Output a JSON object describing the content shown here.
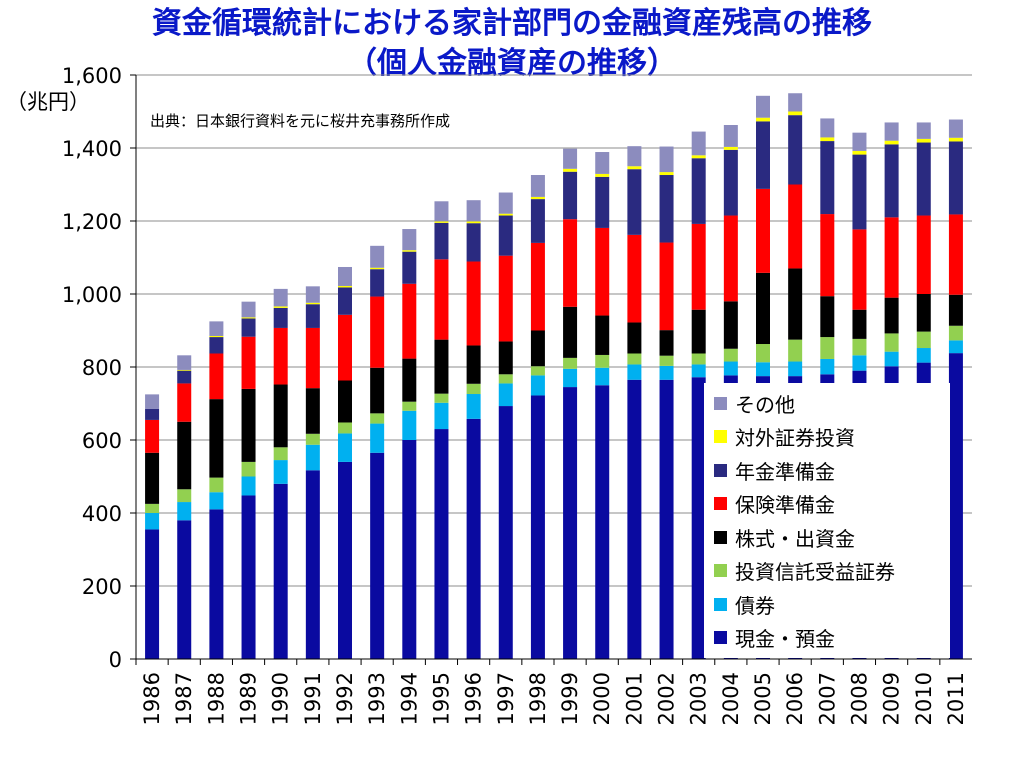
{
  "title": {
    "line1": "資金循環統計における家計部門の金融資産残高の推移",
    "line2": "（個人金融資産の推移）"
  },
  "unit_label": "（兆円）",
  "source_note": "出典：日本銀行資料を元に桜井充事務所作成",
  "chart_data": {
    "type": "bar",
    "stacked": true,
    "title": "資金循環統計における家計部門の金融資産残高の推移（個人金融資産の推移）",
    "ylabel": "（兆円）",
    "ylim": [
      0,
      1600
    ],
    "yticks": [
      0,
      200,
      400,
      600,
      800,
      1000,
      1200,
      1400,
      1600
    ],
    "ytick_labels": [
      "0",
      "200",
      "400",
      "600",
      "800",
      "1,000",
      "1,200",
      "1,400",
      "1,600"
    ],
    "grid": true,
    "legend_position": "bottom-right",
    "categories": [
      "1986",
      "1987",
      "1988",
      "1989",
      "1990",
      "1991",
      "1992",
      "1993",
      "1994",
      "1995",
      "1996",
      "1997",
      "1998",
      "1999",
      "2000",
      "2001",
      "2002",
      "2003",
      "2004",
      "2005",
      "2006",
      "2007",
      "2008",
      "2009",
      "2010",
      "2011"
    ],
    "series": [
      {
        "name": "現金・預金",
        "color": "#0a0aa0",
        "values": [
          355,
          380,
          410,
          448,
          480,
          517,
          540,
          565,
          600,
          630,
          658,
          693,
          722,
          745,
          750,
          765,
          765,
          772,
          777,
          775,
          775,
          780,
          790,
          802,
          812,
          838
        ]
      },
      {
        "name": "債券",
        "color": "#00b0f0",
        "values": [
          45,
          50,
          47,
          52,
          65,
          70,
          78,
          80,
          80,
          72,
          68,
          62,
          55,
          50,
          48,
          42,
          38,
          35,
          38,
          38,
          40,
          42,
          42,
          40,
          40,
          35
        ]
      },
      {
        "name": "投資信託受益証券",
        "color": "#92d050",
        "values": [
          25,
          35,
          40,
          40,
          35,
          30,
          30,
          28,
          25,
          25,
          28,
          25,
          25,
          30,
          35,
          30,
          28,
          30,
          35,
          50,
          60,
          60,
          45,
          50,
          45,
          40
        ]
      },
      {
        "name": "株式・出資金",
        "color": "#000000",
        "values": [
          140,
          185,
          215,
          200,
          172,
          125,
          115,
          125,
          118,
          148,
          105,
          90,
          98,
          140,
          108,
          85,
          70,
          120,
          130,
          195,
          195,
          112,
          80,
          98,
          103,
          85
        ]
      },
      {
        "name": "保険準備金",
        "color": "#ff0000",
        "values": [
          90,
          105,
          125,
          143,
          155,
          165,
          180,
          195,
          205,
          220,
          230,
          235,
          240,
          240,
          240,
          240,
          240,
          235,
          235,
          230,
          230,
          225,
          220,
          220,
          215,
          220
        ]
      },
      {
        "name": "年金準備金",
        "color": "#2a2a80",
        "values": [
          30,
          35,
          45,
          50,
          55,
          65,
          75,
          75,
          88,
          100,
          105,
          110,
          120,
          130,
          140,
          180,
          185,
          180,
          180,
          185,
          190,
          200,
          205,
          200,
          200,
          200
        ]
      },
      {
        "name": "対外証券投資",
        "color": "#ffff00",
        "values": [
          0,
          2,
          3,
          3,
          4,
          4,
          4,
          4,
          4,
          4,
          5,
          5,
          6,
          8,
          8,
          8,
          8,
          8,
          8,
          10,
          10,
          10,
          10,
          10,
          10,
          10
        ]
      },
      {
        "name": "その他",
        "color": "#8c8cbe",
        "values": [
          40,
          40,
          40,
          43,
          48,
          45,
          52,
          60,
          58,
          55,
          58,
          58,
          60,
          55,
          60,
          55,
          70,
          65,
          60,
          60,
          50,
          52,
          50,
          50,
          45,
          50
        ]
      }
    ]
  }
}
